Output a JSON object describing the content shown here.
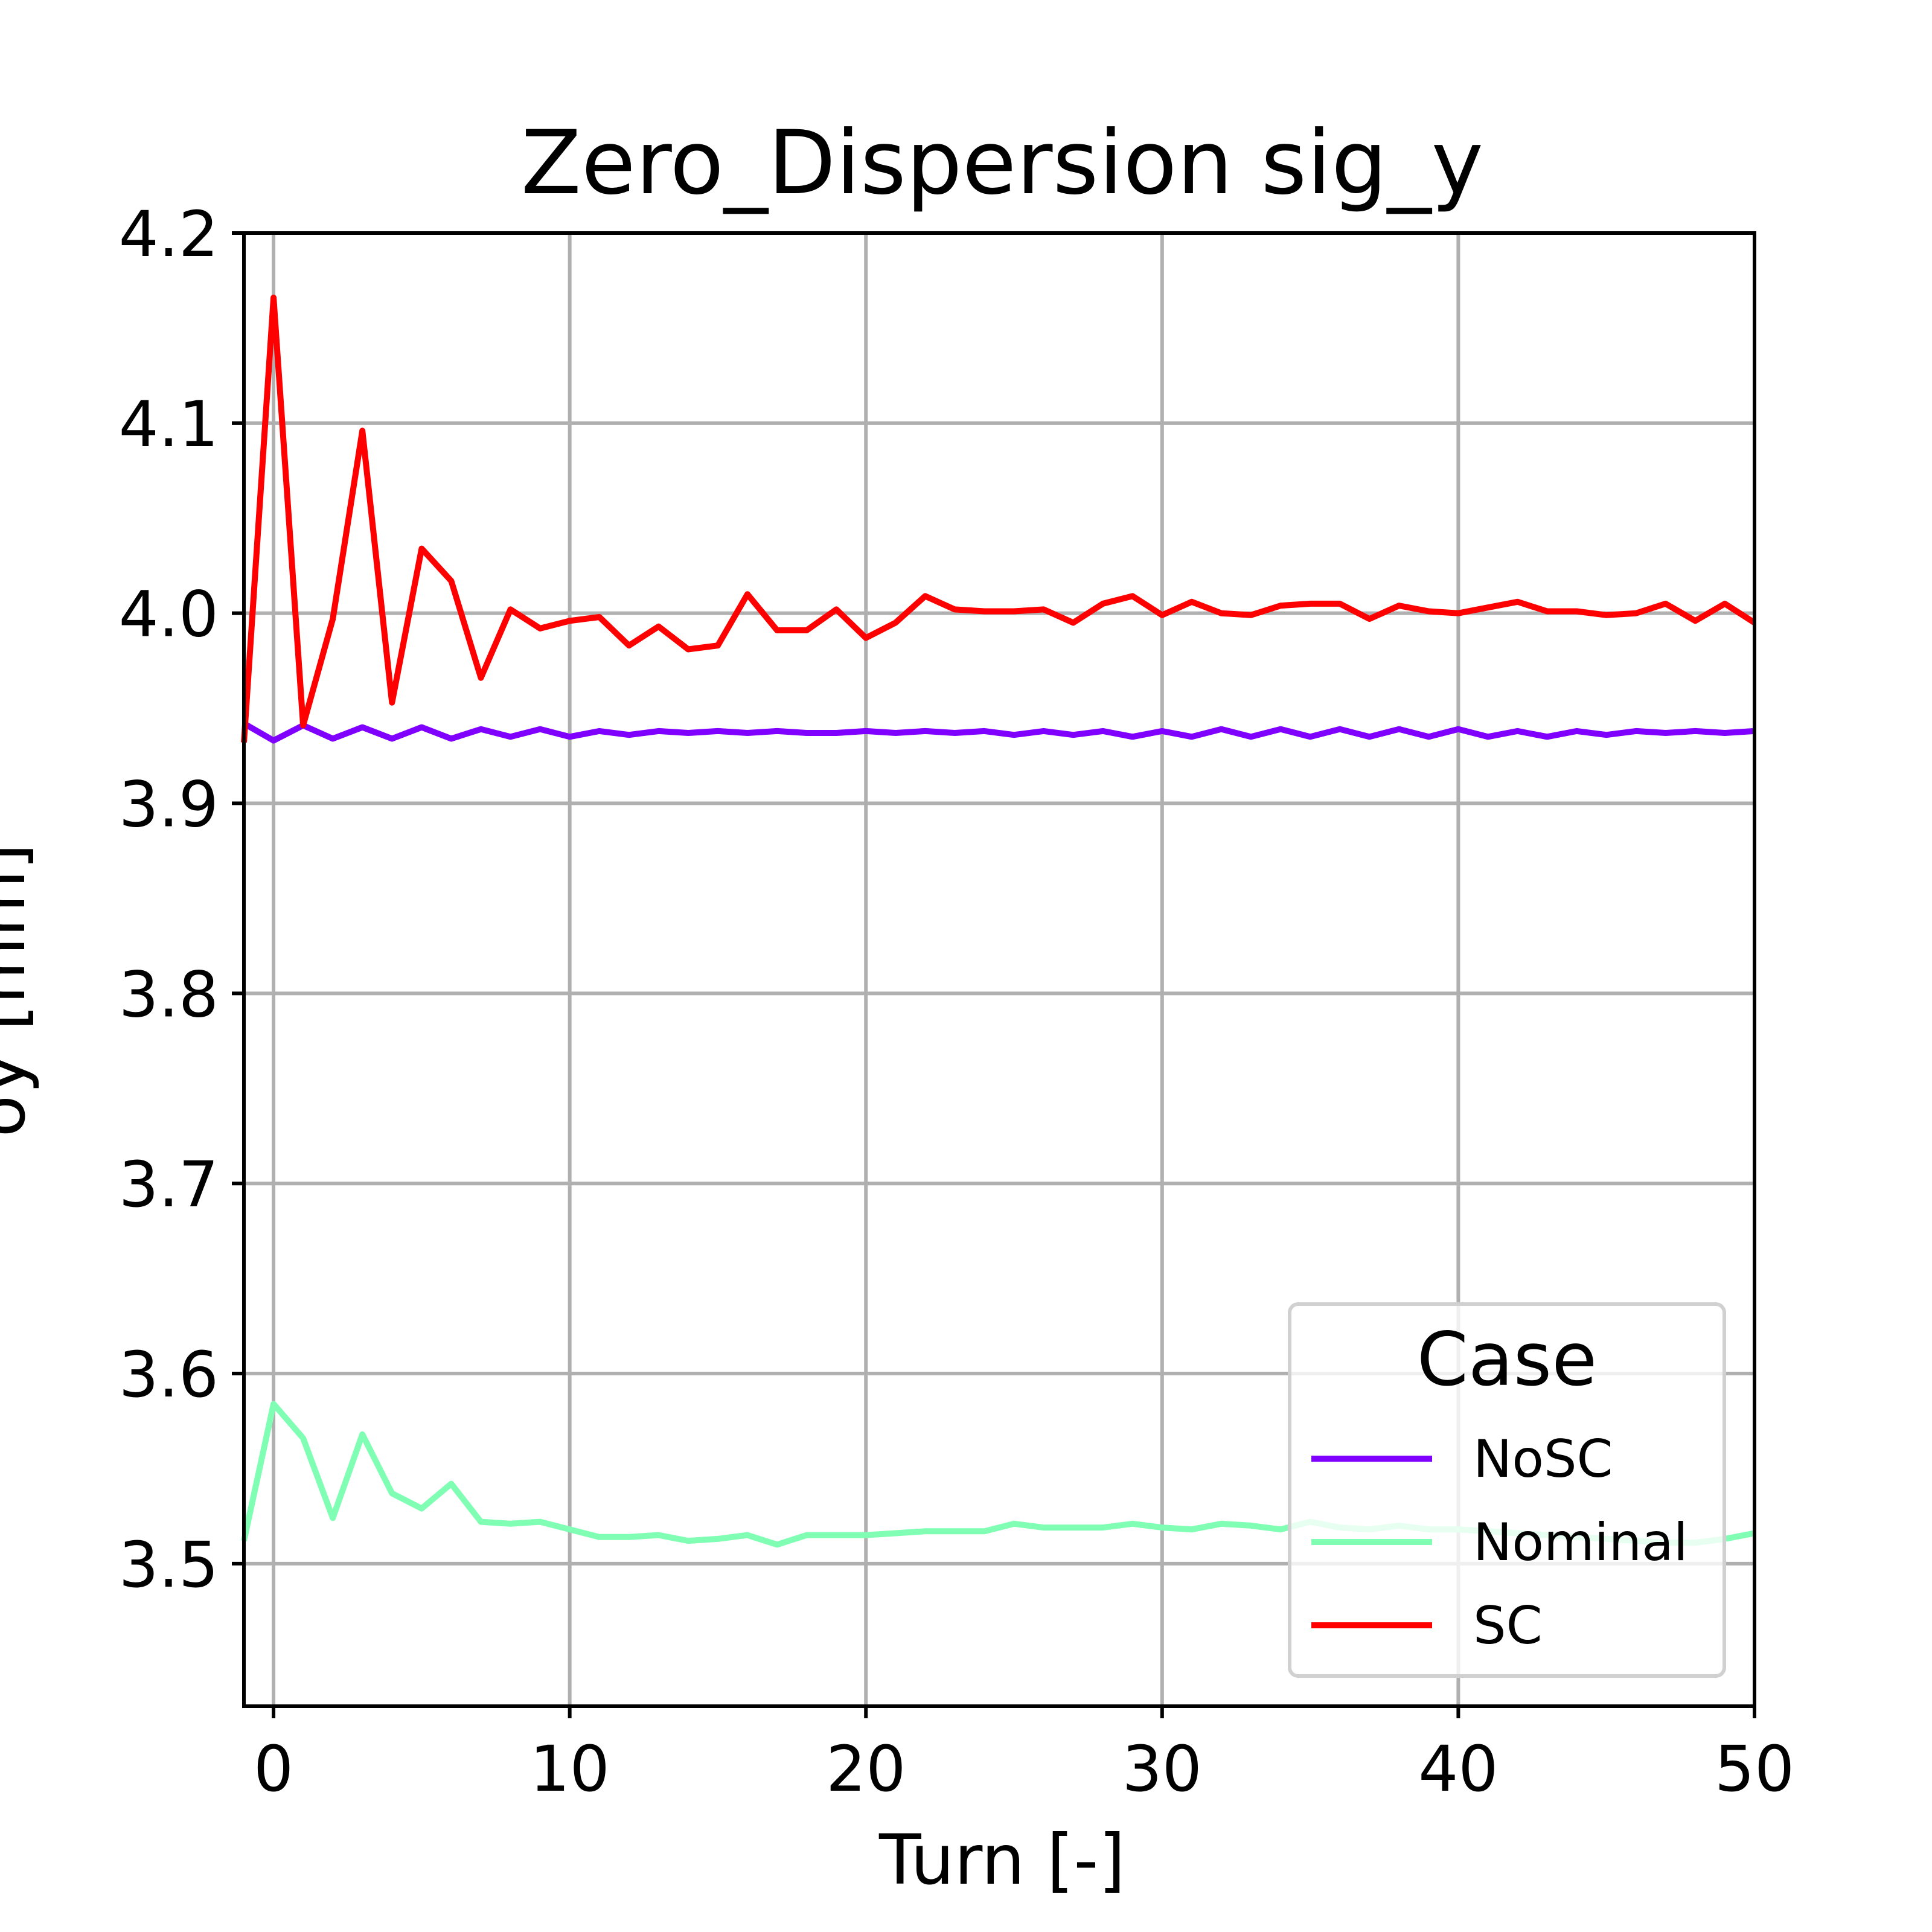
{
  "chart_data": {
    "type": "line",
    "title": "Zero_Dispersion  sig_y",
    "xlabel": "Turn [-]",
    "ylabel": "σy [mm]",
    "xlim": [
      -1,
      50
    ],
    "ylim": [
      3.425,
      4.2
    ],
    "xticks": [
      0,
      10,
      20,
      30,
      40,
      50
    ],
    "yticks": [
      3.5,
      3.6,
      3.7,
      3.8,
      3.9,
      4.0,
      4.1,
      4.2
    ],
    "ytick_labels": [
      "3.5",
      "3.6",
      "3.7",
      "3.8",
      "3.9",
      "4.0",
      "4.1",
      "4.2"
    ],
    "grid": true,
    "legend": {
      "title": "Case",
      "placement": "lower-right"
    },
    "x": [
      -1,
      0,
      1,
      2,
      3,
      4,
      5,
      6,
      7,
      8,
      9,
      10,
      11,
      12,
      13,
      14,
      15,
      16,
      17,
      18,
      19,
      20,
      21,
      22,
      23,
      24,
      25,
      26,
      27,
      28,
      29,
      30,
      31,
      32,
      33,
      34,
      35,
      36,
      37,
      38,
      39,
      40,
      41,
      42,
      43,
      44,
      45,
      46,
      47,
      48,
      49,
      50
    ],
    "series": [
      {
        "name": "NoSC",
        "color": "#8000ff",
        "values": [
          3.942,
          3.933,
          3.941,
          3.934,
          3.94,
          3.934,
          3.94,
          3.934,
          3.939,
          3.935,
          3.939,
          3.935,
          3.938,
          3.936,
          3.938,
          3.937,
          3.938,
          3.937,
          3.938,
          3.937,
          3.937,
          3.938,
          3.937,
          3.938,
          3.937,
          3.938,
          3.936,
          3.938,
          3.936,
          3.938,
          3.935,
          3.938,
          3.935,
          3.939,
          3.935,
          3.939,
          3.935,
          3.939,
          3.935,
          3.939,
          3.935,
          3.939,
          3.935,
          3.938,
          3.935,
          3.938,
          3.936,
          3.938,
          3.937,
          3.938,
          3.937,
          3.938
        ]
      },
      {
        "name": "Nominal",
        "color": "#80ffb4",
        "values": [
          3.512,
          3.584,
          3.566,
          3.524,
          3.568,
          3.537,
          3.529,
          3.542,
          3.522,
          3.521,
          3.522,
          3.518,
          3.514,
          3.514,
          3.515,
          3.512,
          3.513,
          3.515,
          3.51,
          3.515,
          3.515,
          3.515,
          3.516,
          3.517,
          3.517,
          3.517,
          3.521,
          3.519,
          3.519,
          3.519,
          3.521,
          3.519,
          3.518,
          3.521,
          3.52,
          3.518,
          3.522,
          3.519,
          3.518,
          3.52,
          3.518,
          3.518,
          3.517,
          3.516,
          3.515,
          3.514,
          3.513,
          3.512,
          3.511,
          3.511,
          3.513,
          3.516
        ]
      },
      {
        "name": "SC",
        "color": "#ff0000",
        "values": [
          3.932,
          4.166,
          3.941,
          3.997,
          4.096,
          3.953,
          4.034,
          4.017,
          3.966,
          4.002,
          3.992,
          3.996,
          3.998,
          3.983,
          3.993,
          3.981,
          3.983,
          4.01,
          3.991,
          3.991,
          4.002,
          3.987,
          3.995,
          4.009,
          4.002,
          4.001,
          4.001,
          4.002,
          3.995,
          4.005,
          4.009,
          3.999,
          4.006,
          4.0,
          3.999,
          4.004,
          4.005,
          4.005,
          3.997,
          4.004,
          4.001,
          4.0,
          4.003,
          4.006,
          4.001,
          4.001,
          3.999,
          4.0,
          4.005,
          3.996,
          4.005,
          3.995
        ]
      }
    ]
  }
}
